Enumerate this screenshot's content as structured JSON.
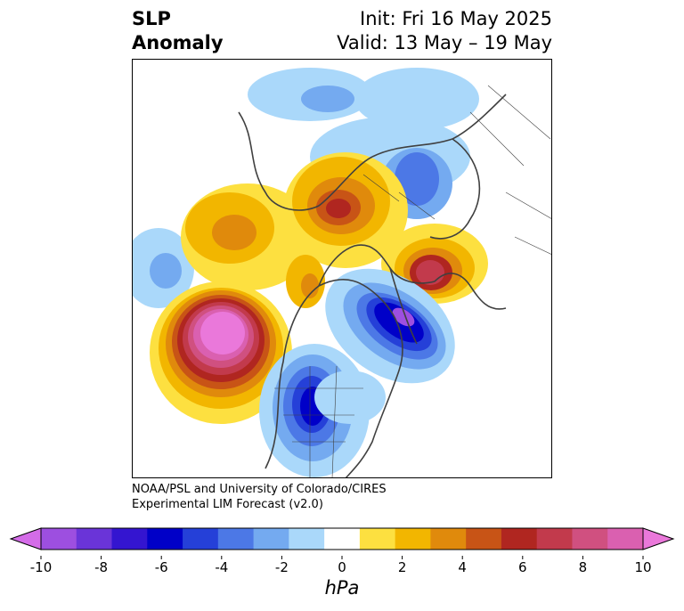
{
  "title": {
    "left_line1": "SLP",
    "left_line2": "Anomaly",
    "right_line1": "Init: Fri 16 May 2025",
    "right_line2": "Valid: 13 May – 19 May"
  },
  "credit": {
    "line1": "NOAA/PSL and University of Colorado/CIRES",
    "line2": "Experimental LIM Forecast (v2.0)"
  },
  "colorbar": {
    "units": "hPa",
    "ticks": [
      "-10",
      "-8",
      "-6",
      "-4",
      "-2",
      "0",
      "2",
      "4",
      "6",
      "8",
      "10"
    ],
    "tick_values": [
      -10,
      -8,
      -6,
      -4,
      -2,
      0,
      2,
      4,
      6,
      8,
      10
    ],
    "colors": [
      "#d46ce8",
      "#9d4fe0",
      "#6a34d8",
      "#3415d0",
      "#0000c8",
      "#2540d8",
      "#4c78e6",
      "#74aaf0",
      "#aad8fa",
      "#ffffff",
      "#fde040",
      "#f2b600",
      "#e08a0c",
      "#c85416",
      "#b02620",
      "#c23a4c",
      "#d05080",
      "#da60b0",
      "#ea78da"
    ]
  },
  "map": {
    "projection": "north-polar",
    "field": "SLP anomaly"
  }
}
